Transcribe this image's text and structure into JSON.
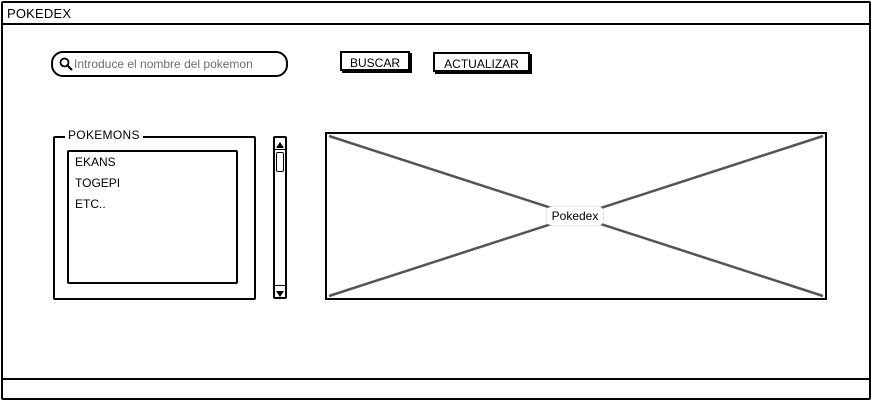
{
  "window": {
    "title": "POKEDEX"
  },
  "search": {
    "placeholder": "Introduce el nombre del pokemon",
    "value": "",
    "icon": "search-icon"
  },
  "toolbar": {
    "buscar_label": "BUSCAR",
    "actualizar_label": "ACTUALIZAR"
  },
  "pokemon_list": {
    "legend": "POKEMONS",
    "items": [
      {
        "label": "EKANS"
      },
      {
        "label": "TOGEPI"
      },
      {
        "label": "ETC.."
      }
    ]
  },
  "image_panel": {
    "label": "Pokedex"
  },
  "colors": {
    "line": "#000000",
    "placeholder_cross": "#555555",
    "placeholder_text": "#6e6e6e"
  }
}
